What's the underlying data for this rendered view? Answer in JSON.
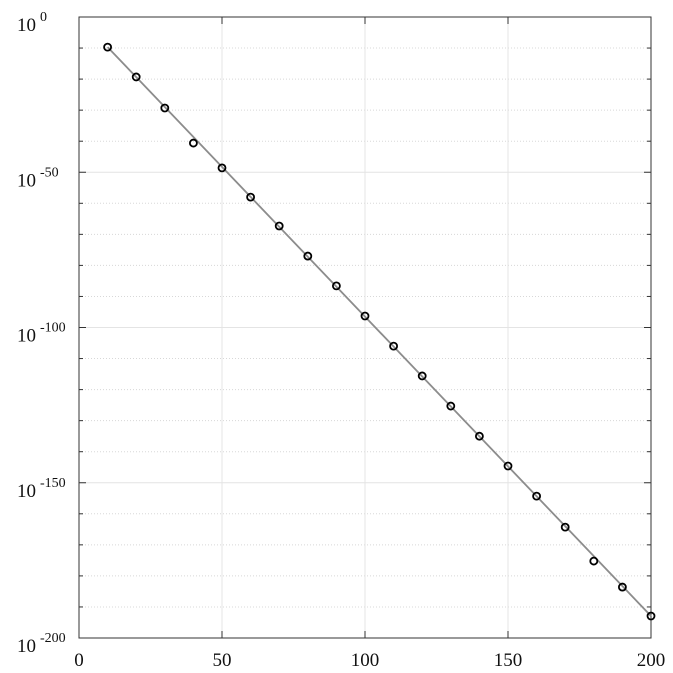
{
  "chart_data": {
    "type": "line",
    "log_y": true,
    "grid": true,
    "minor_grid": true,
    "xlim": [
      0,
      200
    ],
    "xticks": [
      0,
      50,
      100,
      150,
      200
    ],
    "ylim": [
      1e-200,
      1
    ],
    "yticks": [
      {
        "value": 1,
        "label": "10",
        "power": "0"
      },
      {
        "value": 1e-50,
        "label": "10",
        "power": "-50"
      },
      {
        "value": 1e-100,
        "label": "10",
        "power": "-100"
      },
      {
        "value": 1e-150,
        "label": "10",
        "power": "-150"
      },
      {
        "value": 1e-200,
        "label": "10",
        "power": "-200"
      }
    ],
    "yminorticks": [
      1e-10,
      1e-20,
      1e-30,
      1e-40,
      1e-60,
      1e-70,
      1e-80,
      1e-90,
      1e-110,
      1e-120,
      1e-130,
      1e-140,
      1e-160,
      1e-170,
      1e-180,
      1e-190
    ],
    "series": [
      {
        "style": "line",
        "color": "#8c8c8c",
        "x": [
          10,
          200
        ],
        "values": [
          2e-10,
          1.2e-193
        ]
      },
      {
        "style": "marker",
        "color": "#000000",
        "x": [
          10,
          20,
          30,
          40,
          50,
          60,
          70,
          80,
          90,
          100,
          110,
          120,
          130,
          140,
          150,
          160,
          170,
          180,
          190,
          200
        ],
        "values": [
          2e-10,
          5e-20,
          5e-30,
          2.5e-41,
          2.5e-49,
          1e-58,
          5e-68,
          1e-77,
          2.5e-87,
          5e-97,
          1e-106,
          2.5e-116,
          5e-126,
          1e-135,
          2.5e-145,
          5e-155,
          5e-165,
          6e-176,
          2.5e-184,
          1.2e-193
        ]
      }
    ]
  }
}
